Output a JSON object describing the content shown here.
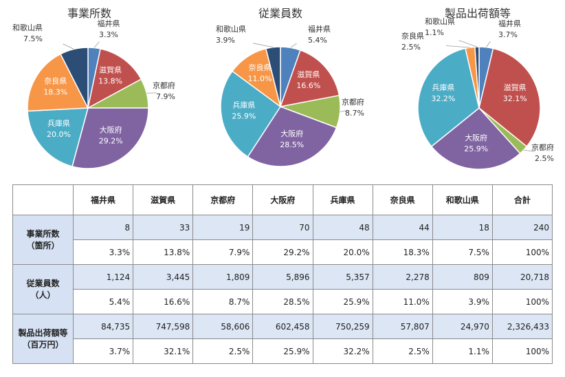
{
  "chart_data": [
    {
      "type": "pie",
      "title": "事業所数",
      "categories": [
        "福井県",
        "滋賀県",
        "京都府",
        "大阪府",
        "兵庫県",
        "奈良県",
        "和歌山県"
      ],
      "values": [
        3.3,
        13.8,
        7.9,
        29.2,
        20.0,
        18.3,
        7.5
      ],
      "labels": [
        "3.3%",
        "13.8%",
        "7.9%",
        "29.2%",
        "20.0%",
        "18.3%",
        "7.5%"
      ]
    },
    {
      "type": "pie",
      "title": "従業員数",
      "categories": [
        "福井県",
        "滋賀県",
        "京都府",
        "大阪府",
        "兵庫県",
        "奈良県",
        "和歌山県"
      ],
      "values": [
        5.4,
        16.6,
        8.7,
        28.5,
        25.9,
        11.0,
        3.9
      ],
      "labels": [
        "5.4%",
        "16.6%",
        "8.7%",
        "28.5%",
        "25.9%",
        "11.0%",
        "3.9%"
      ]
    },
    {
      "type": "pie",
      "title": "製品出荷額等",
      "categories": [
        "福井県",
        "滋賀県",
        "京都府",
        "大阪府",
        "兵庫県",
        "奈良県",
        "和歌山県"
      ],
      "values": [
        3.7,
        32.1,
        2.5,
        25.9,
        32.2,
        2.5,
        1.1
      ],
      "labels": [
        "3.7%",
        "32.1%",
        "2.5%",
        "25.9%",
        "32.2%",
        "2.5%",
        "1.1%"
      ]
    },
    {
      "type": "table",
      "columns": [
        "福井県",
        "滋賀県",
        "京都府",
        "大阪府",
        "兵庫県",
        "奈良県",
        "和歌山県",
        "合計"
      ],
      "rows": [
        {
          "name": [
            "事業所数",
            "（箇所）"
          ],
          "values": [
            "8",
            "33",
            "19",
            "70",
            "48",
            "44",
            "18",
            "240"
          ],
          "pct": [
            "3.3%",
            "13.8%",
            "7.9%",
            "29.2%",
            "20.0%",
            "18.3%",
            "7.5%",
            "100%"
          ]
        },
        {
          "name": [
            "従業員数",
            "（人）"
          ],
          "values": [
            "1,124",
            "3,445",
            "1,809",
            "5,896",
            "5,357",
            "2,278",
            "809",
            "20,718"
          ],
          "pct": [
            "5.4%",
            "16.6%",
            "8.7%",
            "28.5%",
            "25.9%",
            "11.0%",
            "3.9%",
            "100%"
          ]
        },
        {
          "name": [
            "製品出荷額等",
            "（百万円）"
          ],
          "values": [
            "84,735",
            "747,598",
            "58,606",
            "602,458",
            "750,259",
            "57,807",
            "24,970",
            "2,326,433"
          ],
          "pct": [
            "3.7%",
            "32.1%",
            "2.5%",
            "25.9%",
            "32.2%",
            "2.5%",
            "1.1%",
            "100%"
          ]
        }
      ]
    }
  ],
  "colors": {
    "福井県": "#4f81bd",
    "滋賀県": "#c0504d",
    "京都府": "#9bbb59",
    "大阪府": "#8064a2",
    "兵庫県": "#4bacc6",
    "奈良県": "#f79646",
    "和歌山県": "#2c4d75"
  }
}
